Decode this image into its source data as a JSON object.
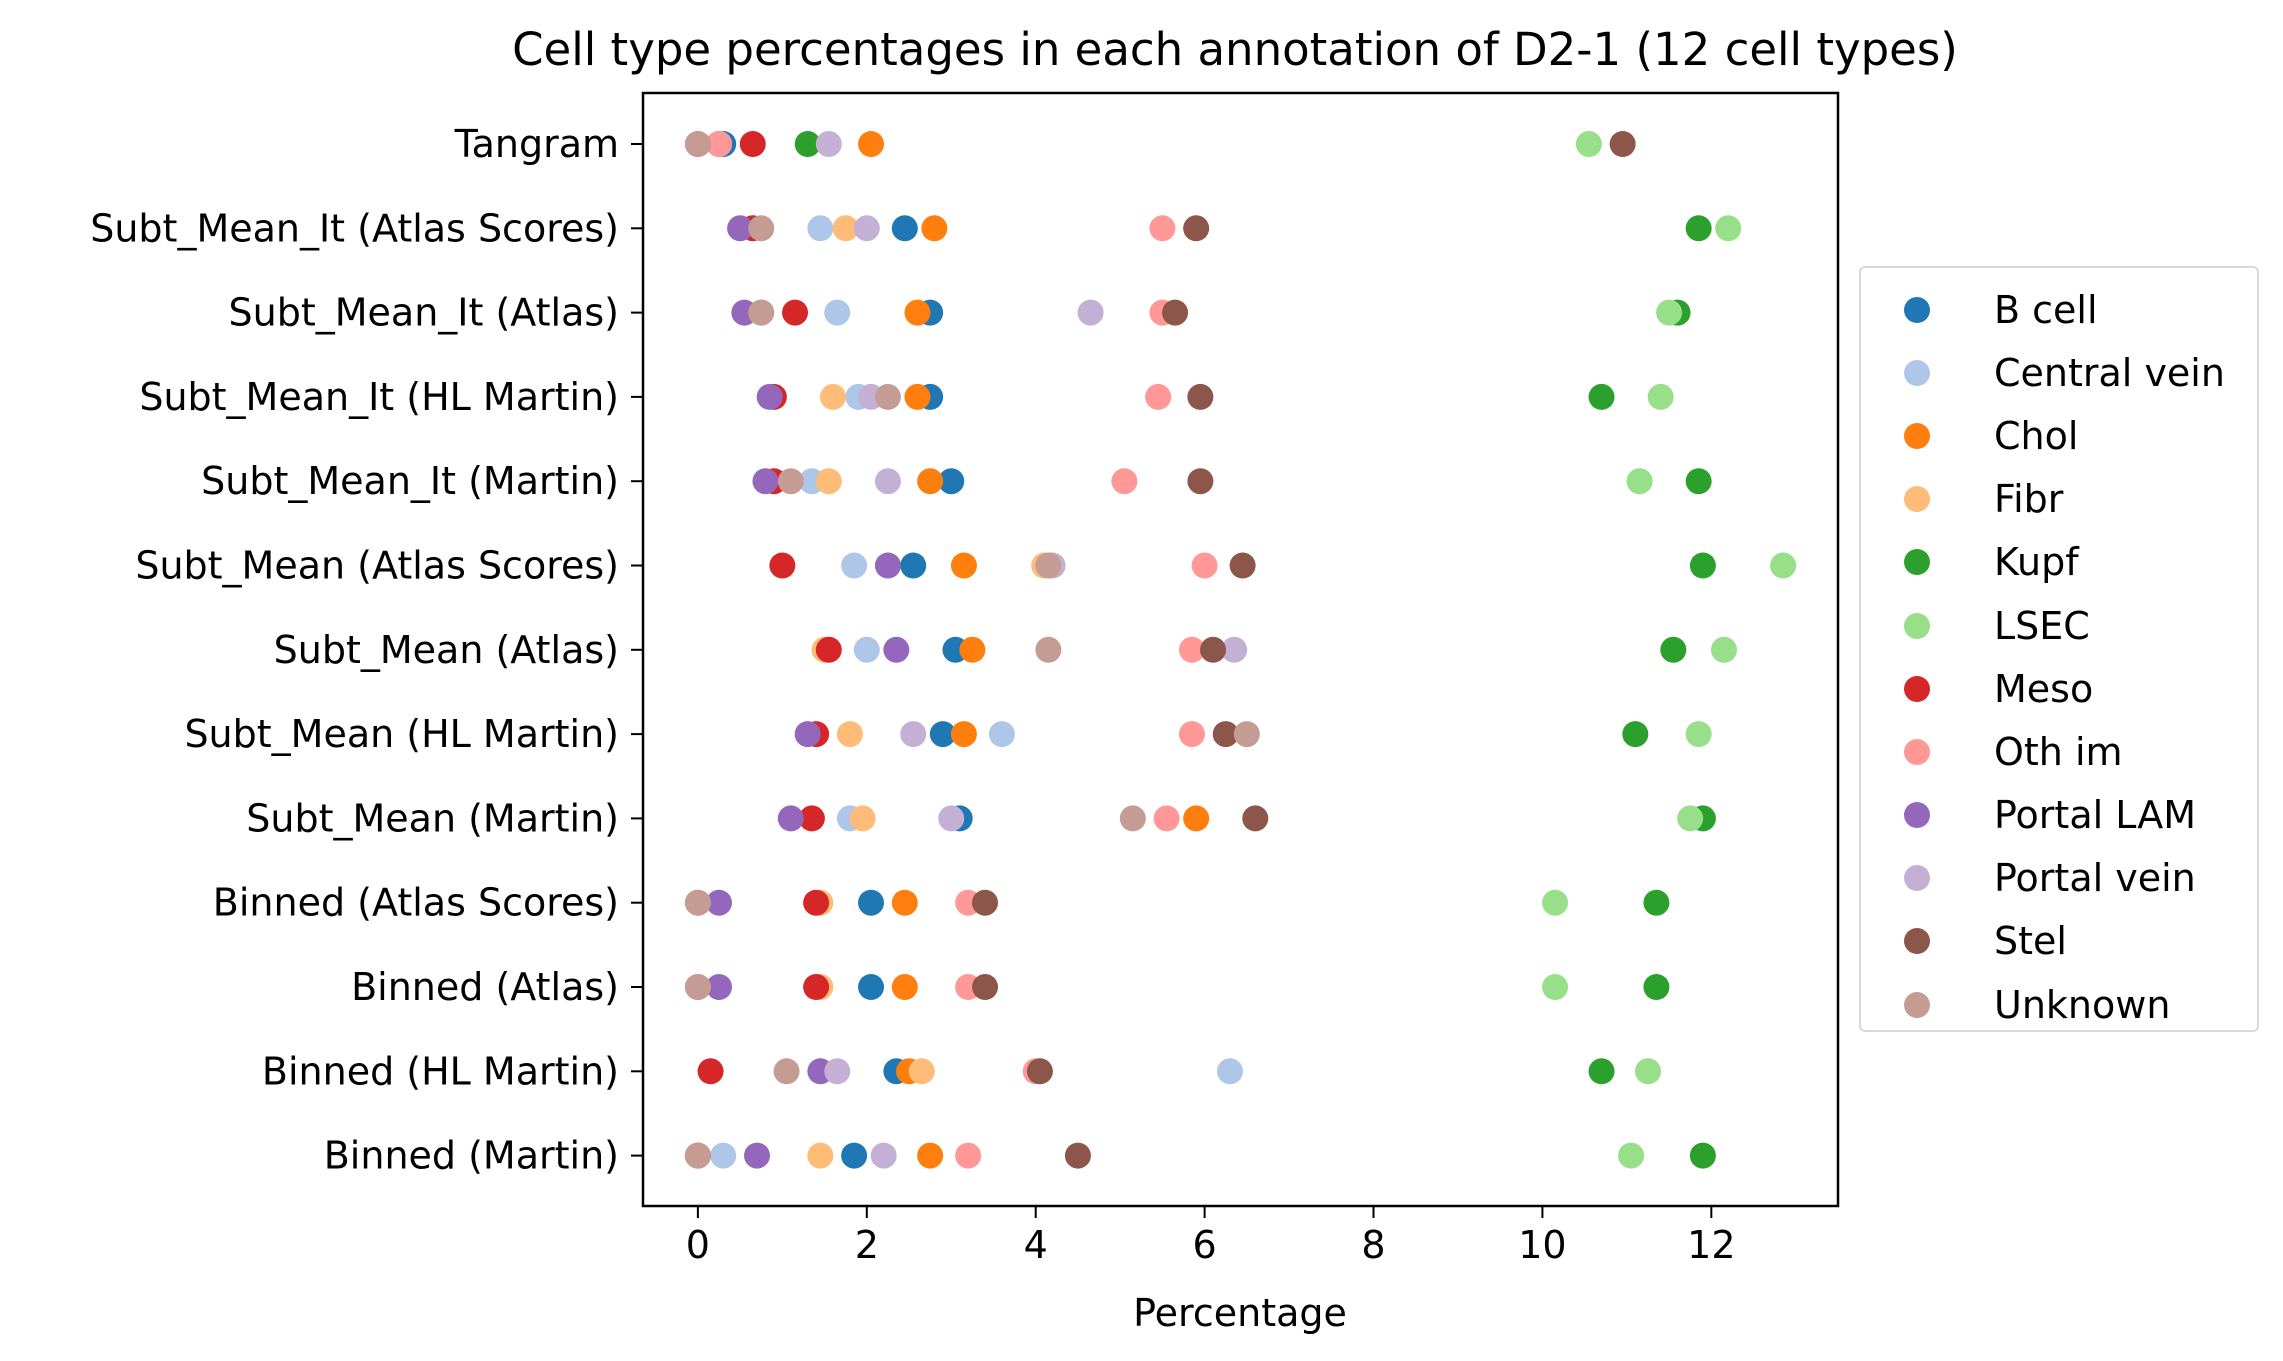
{
  "chart_data": {
    "type": "scatter",
    "title": "Cell type percentages in each annotation of D2-1 (12 cell types)",
    "xlabel": "Percentage",
    "ylabel": "",
    "xlim": [
      -0.65,
      13.5
    ],
    "xticks": [
      0,
      2,
      4,
      6,
      8,
      10,
      12
    ],
    "grid": false,
    "legend_position": "right",
    "categories": [
      "Tangram",
      "Subt_Mean_It (Atlas Scores)",
      "Subt_Mean_It (Atlas)",
      "Subt_Mean_It (HL Martin)",
      "Subt_Mean_It (Martin)",
      "Subt_Mean (Atlas Scores)",
      "Subt_Mean (Atlas)",
      "Subt_Mean (HL Martin)",
      "Subt_Mean (Martin)",
      "Binned (Atlas Scores)",
      "Binned (Atlas)",
      "Binned (HL Martin)",
      "Binned (Martin)"
    ],
    "series": [
      {
        "name": "B cell",
        "color": "#1f77b4",
        "values": [
          0.3,
          2.45,
          2.75,
          2.75,
          3.0,
          2.55,
          3.05,
          2.9,
          3.1,
          2.05,
          2.05,
          2.35,
          1.85
        ]
      },
      {
        "name": "Central vein",
        "color": "#aec7e8",
        "values": [
          0.25,
          1.45,
          1.65,
          1.9,
          1.35,
          1.85,
          2.0,
          3.6,
          1.8,
          0.0,
          0.0,
          6.3,
          0.3
        ]
      },
      {
        "name": "Chol",
        "color": "#ff7f0e",
        "values": [
          2.05,
          2.8,
          2.6,
          2.6,
          2.75,
          3.15,
          3.25,
          3.15,
          5.9,
          2.45,
          2.45,
          2.5,
          2.75
        ]
      },
      {
        "name": "Fibr",
        "color": "#ffbb78",
        "values": [
          0.25,
          1.75,
          0.75,
          1.6,
          1.55,
          4.1,
          1.5,
          1.8,
          1.95,
          1.45,
          1.45,
          2.65,
          1.45
        ]
      },
      {
        "name": "Kupf",
        "color": "#2ca02c",
        "values": [
          1.3,
          11.85,
          11.6,
          10.7,
          11.85,
          11.9,
          11.55,
          11.1,
          11.9,
          11.35,
          11.35,
          10.7,
          11.9
        ]
      },
      {
        "name": "LSEC",
        "color": "#98df8a",
        "values": [
          10.55,
          12.2,
          11.5,
          11.4,
          11.15,
          12.85,
          12.15,
          11.85,
          11.75,
          10.15,
          10.15,
          11.25,
          11.05
        ]
      },
      {
        "name": "Meso",
        "color": "#d62728",
        "values": [
          0.65,
          0.65,
          1.15,
          0.9,
          0.9,
          1.0,
          1.55,
          1.4,
          1.35,
          1.4,
          1.4,
          0.15,
          0.0
        ]
      },
      {
        "name": "Oth im",
        "color": "#ff9896",
        "values": [
          0.25,
          5.5,
          5.5,
          5.45,
          5.05,
          6.0,
          5.85,
          5.85,
          5.55,
          3.2,
          3.2,
          4.0,
          3.2
        ]
      },
      {
        "name": "Portal LAM",
        "color": "#9467bd",
        "values": [
          0.0,
          0.5,
          0.55,
          0.85,
          0.8,
          2.25,
          2.35,
          1.3,
          1.1,
          0.25,
          0.25,
          1.45,
          0.7
        ]
      },
      {
        "name": "Portal vein",
        "color": "#c5b0d5",
        "values": [
          1.55,
          2.0,
          4.65,
          2.05,
          2.25,
          4.2,
          6.35,
          2.55,
          3.0,
          0.0,
          0.0,
          1.65,
          2.2
        ]
      },
      {
        "name": "Stel",
        "color": "#8c564b",
        "values": [
          10.95,
          5.9,
          5.65,
          5.95,
          5.95,
          6.45,
          6.1,
          6.25,
          6.6,
          3.4,
          3.4,
          4.05,
          4.5
        ]
      },
      {
        "name": "Unknown",
        "color": "#c49c94",
        "values": [
          0.0,
          0.75,
          0.75,
          2.25,
          1.1,
          4.15,
          4.15,
          6.5,
          5.15,
          0.0,
          0.0,
          1.05,
          0.0
        ]
      }
    ]
  }
}
